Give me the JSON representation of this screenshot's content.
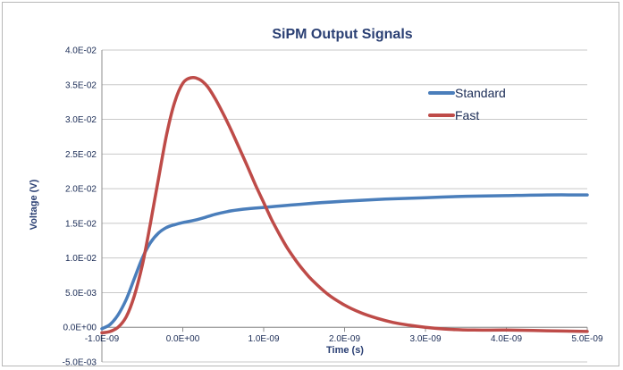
{
  "chart_data": {
    "type": "line",
    "title": "SiPM Output Signals",
    "xlabel": "Time (s)",
    "ylabel": "Voltage (V)",
    "xlim": [
      -1e-09,
      5e-09
    ],
    "ylim": [
      -0.005,
      0.04
    ],
    "x_ticks": [
      -1e-09,
      0.0,
      1e-09,
      2e-09,
      3e-09,
      4e-09,
      5e-09
    ],
    "x_tick_labels": [
      "-1.0E-09",
      "0.0E+00",
      "1.0E-09",
      "2.0E-09",
      "3.0E-09",
      "4.0E-09",
      "5.0E-09"
    ],
    "y_ticks": [
      -0.005,
      0.0,
      0.005,
      0.01,
      0.015,
      0.02,
      0.025,
      0.03,
      0.035,
      0.04
    ],
    "y_tick_labels": [
      "-5.0E-03",
      "0.0E+00",
      "5.0E-03",
      "1.0E-02",
      "1.5E-02",
      "2.0E-02",
      "2.5E-02",
      "3.0E-02",
      "3.5E-02",
      "4.0E-02"
    ],
    "grid": "horizontal",
    "legend": "top-right",
    "series": [
      {
        "name": "Standard",
        "color": "#4a7ebb",
        "x": [
          -1e-09,
          -9e-10,
          -8e-10,
          -7e-10,
          -6e-10,
          -5e-10,
          -4e-10,
          -3e-10,
          -2e-10,
          -1e-10,
          0.0,
          2e-10,
          4e-10,
          6e-10,
          8e-10,
          1e-09,
          1.5e-09,
          2e-09,
          2.5e-09,
          3e-09,
          3.5e-09,
          4e-09,
          4.5e-09,
          5e-09
        ],
        "y": [
          -0.0002,
          0.0004,
          0.0018,
          0.004,
          0.007,
          0.01,
          0.0122,
          0.0136,
          0.0144,
          0.0148,
          0.0151,
          0.0156,
          0.0163,
          0.0168,
          0.0171,
          0.0173,
          0.0178,
          0.0182,
          0.0185,
          0.0187,
          0.0189,
          0.019,
          0.0191,
          0.0191
        ]
      },
      {
        "name": "Fast",
        "color": "#be4b48",
        "x": [
          -1e-09,
          -9e-10,
          -8e-10,
          -7e-10,
          -6e-10,
          -5e-10,
          -4e-10,
          -3e-10,
          -2e-10,
          -1e-10,
          0.0,
          1e-10,
          2e-10,
          3e-10,
          4e-10,
          5e-10,
          6e-10,
          7e-10,
          8e-10,
          9e-10,
          1e-09,
          1.1e-09,
          1.2e-09,
          1.3e-09,
          1.4e-09,
          1.5e-09,
          1.6e-09,
          1.8e-09,
          2e-09,
          2.2e-09,
          2.4e-09,
          2.6e-09,
          2.8e-09,
          3e-09,
          3.3e-09,
          3.6e-09,
          4e-09,
          4.5e-09,
          5e-09
        ],
        "y": [
          -0.0008,
          -0.0006,
          0.0,
          0.0015,
          0.0045,
          0.009,
          0.015,
          0.0215,
          0.0278,
          0.0325,
          0.0352,
          0.036,
          0.0358,
          0.0348,
          0.033,
          0.0308,
          0.0284,
          0.0258,
          0.0232,
          0.0205,
          0.018,
          0.0155,
          0.0133,
          0.0113,
          0.0096,
          0.0081,
          0.0068,
          0.0047,
          0.0032,
          0.0021,
          0.0013,
          0.0007,
          0.0003,
          0.0,
          -0.0003,
          -0.0004,
          -0.0004,
          -0.0005,
          -0.0006
        ]
      }
    ]
  }
}
